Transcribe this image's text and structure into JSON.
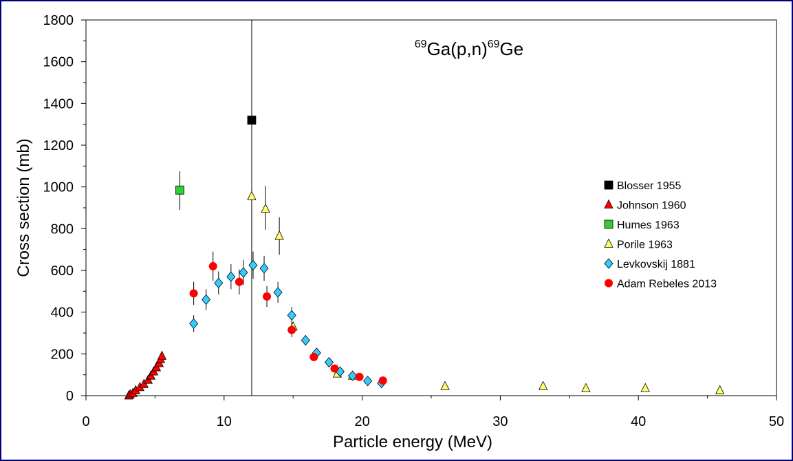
{
  "chart_data": {
    "type": "scatter",
    "title_parts": {
      "sup_a": "69",
      "main_a": "Ga(p,n)",
      "sup_b": "69",
      "main_b": "Ge"
    },
    "xlabel": "Particle energy (MeV)",
    "ylabel": "Cross section (mb)",
    "xlim": [
      0,
      50
    ],
    "ylim": [
      0,
      1800
    ],
    "xticks": [
      0,
      10,
      20,
      30,
      40,
      50
    ],
    "yticks": [
      0,
      200,
      400,
      600,
      800,
      1000,
      1200,
      1400,
      1600,
      1800
    ],
    "grid": false,
    "legend_position": "right",
    "series": [
      {
        "name": "Blosser 1955",
        "marker": "square",
        "color": "#000000",
        "points": [
          {
            "x": 12.0,
            "y": 1320,
            "err_lo": 1320,
            "err_hi": 480
          }
        ]
      },
      {
        "name": "Johnson 1960",
        "marker": "triangle",
        "color": "#ff0000",
        "points": [
          {
            "x": 3.1,
            "y": 0
          },
          {
            "x": 3.2,
            "y": 5
          },
          {
            "x": 3.4,
            "y": 12
          },
          {
            "x": 3.6,
            "y": 25
          },
          {
            "x": 3.9,
            "y": 40
          },
          {
            "x": 4.2,
            "y": 55
          },
          {
            "x": 4.5,
            "y": 75
          },
          {
            "x": 4.7,
            "y": 95
          },
          {
            "x": 4.9,
            "y": 115
          },
          {
            "x": 5.1,
            "y": 135
          },
          {
            "x": 5.3,
            "y": 155
          },
          {
            "x": 5.4,
            "y": 175
          },
          {
            "x": 5.5,
            "y": 190
          }
        ]
      },
      {
        "name": "Humes 1963",
        "marker": "square",
        "color": "#33cc33",
        "points": [
          {
            "x": 6.8,
            "y": 985,
            "err_lo": 95,
            "err_hi": 90
          }
        ]
      },
      {
        "name": "Porile 1963",
        "marker": "triangle",
        "color": "#ffff66",
        "points": [
          {
            "x": 12.0,
            "y": 955,
            "err_lo": 310,
            "err_hi": 0
          },
          {
            "x": 13.0,
            "y": 895,
            "err_lo": 100,
            "err_hi": 110
          },
          {
            "x": 14.0,
            "y": 765,
            "err_lo": 90,
            "err_hi": 90
          },
          {
            "x": 15.0,
            "y": 330
          },
          {
            "x": 18.2,
            "y": 105
          },
          {
            "x": 19.3,
            "y": 95
          },
          {
            "x": 26.0,
            "y": 45
          },
          {
            "x": 33.1,
            "y": 45
          },
          {
            "x": 36.2,
            "y": 35
          },
          {
            "x": 40.5,
            "y": 35
          },
          {
            "x": 45.9,
            "y": 25
          }
        ]
      },
      {
        "name": "Levkovskij 1881",
        "marker": "diamond",
        "color": "#33ccff",
        "points": [
          {
            "x": 7.8,
            "y": 345,
            "err_lo": 40,
            "err_hi": 40
          },
          {
            "x": 8.7,
            "y": 460,
            "err_lo": 50,
            "err_hi": 50
          },
          {
            "x": 9.6,
            "y": 540,
            "err_lo": 55,
            "err_hi": 55
          },
          {
            "x": 10.5,
            "y": 570,
            "err_lo": 60,
            "err_hi": 60
          },
          {
            "x": 11.4,
            "y": 590,
            "err_lo": 60,
            "err_hi": 60
          },
          {
            "x": 12.1,
            "y": 625,
            "err_lo": 65,
            "err_hi": 65
          },
          {
            "x": 12.9,
            "y": 610,
            "err_lo": 60,
            "err_hi": 60
          },
          {
            "x": 13.9,
            "y": 495,
            "err_lo": 50,
            "err_hi": 50
          },
          {
            "x": 14.9,
            "y": 385,
            "err_lo": 40,
            "err_hi": 40
          },
          {
            "x": 15.9,
            "y": 265,
            "err_lo": 25,
            "err_hi": 25
          },
          {
            "x": 16.7,
            "y": 205
          },
          {
            "x": 17.6,
            "y": 160
          },
          {
            "x": 18.4,
            "y": 115
          },
          {
            "x": 19.3,
            "y": 95
          },
          {
            "x": 20.4,
            "y": 70
          },
          {
            "x": 21.4,
            "y": 60
          }
        ]
      },
      {
        "name": "Adam Rebeles 2013",
        "marker": "circle",
        "color": "#ff0000",
        "points": [
          {
            "x": 7.8,
            "y": 490,
            "err_lo": 55,
            "err_hi": 55
          },
          {
            "x": 9.2,
            "y": 620,
            "err_lo": 70,
            "err_hi": 70
          },
          {
            "x": 11.1,
            "y": 545,
            "err_lo": 60,
            "err_hi": 60
          },
          {
            "x": 13.1,
            "y": 475,
            "err_lo": 50,
            "err_hi": 50
          },
          {
            "x": 14.9,
            "y": 315,
            "err_lo": 35,
            "err_hi": 35
          },
          {
            "x": 16.5,
            "y": 185
          },
          {
            "x": 18.0,
            "y": 130
          },
          {
            "x": 19.8,
            "y": 90
          },
          {
            "x": 21.5,
            "y": 72
          }
        ]
      }
    ]
  }
}
